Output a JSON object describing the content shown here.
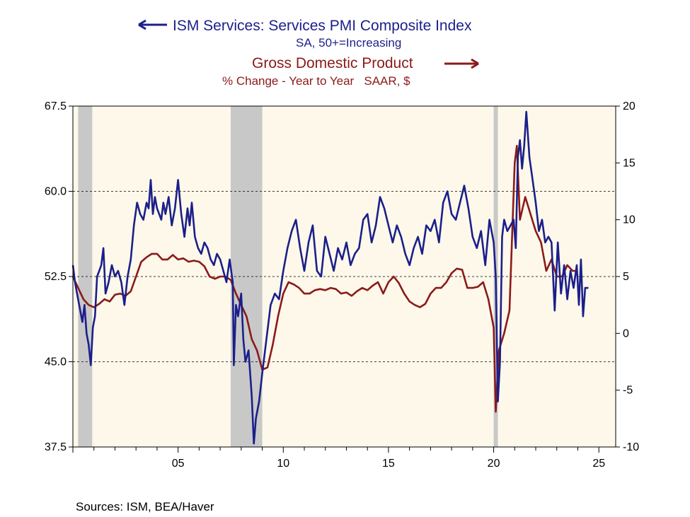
{
  "legend": {
    "ism_title": "ISM Services: Services PMI Composite Index",
    "ism_subtitle": "SA, 50+=Increasing",
    "gdp_title": "Gross Domestic Product",
    "gdp_subtitle": "% Change - Year to Year   SAAR, $"
  },
  "source": "Sources:  ISM, BEA/Haver",
  "colors": {
    "ism": "#1b1f8a",
    "gdp": "#8b1a1a",
    "plot_bg": "#fdf8ea",
    "recession": "#c8c8c8"
  },
  "chart_data": {
    "type": "line",
    "xlim": [
      2000,
      2025.8
    ],
    "x_ticks": [
      {
        "v": 2005,
        "label": "05"
      },
      {
        "v": 2010,
        "label": "10"
      },
      {
        "v": 2015,
        "label": "15"
      },
      {
        "v": 2020,
        "label": "20"
      },
      {
        "v": 2025,
        "label": "25"
      }
    ],
    "left_axis": {
      "ylim": [
        37.5,
        67.5
      ],
      "ticks": [
        "37.5",
        "45.0",
        "52.5",
        "60.0",
        "67.5"
      ]
    },
    "right_axis": {
      "ylim": [
        -10,
        20
      ],
      "ticks": [
        "-10",
        "-5",
        "0",
        "5",
        "10",
        "15",
        "20"
      ]
    },
    "gridlines_left": [
      45.0,
      52.5,
      60.0
    ],
    "recessions": [
      [
        2000.25,
        2000.92
      ],
      [
        2007.5,
        2009.0
      ],
      [
        2020.0,
        2020.2
      ]
    ],
    "series": [
      {
        "name": "ISM Services: Services PMI Composite Index",
        "axis": "left",
        "x": [
          2000.0,
          2000.1,
          2000.2,
          2000.3,
          2000.45,
          2000.55,
          2000.65,
          2000.75,
          2000.85,
          2000.95,
          2001.05,
          2001.15,
          2001.25,
          2001.35,
          2001.45,
          2001.55,
          2001.7,
          2001.85,
          2002.0,
          2002.15,
          2002.3,
          2002.45,
          2002.6,
          2002.75,
          2002.9,
          2003.05,
          2003.2,
          2003.35,
          2003.5,
          2003.6,
          2003.7,
          2003.8,
          2003.9,
          2004.0,
          2004.1,
          2004.2,
          2004.3,
          2004.4,
          2004.55,
          2004.7,
          2004.85,
          2005.0,
          2005.15,
          2005.3,
          2005.45,
          2005.55,
          2005.65,
          2005.8,
          2005.95,
          2006.1,
          2006.25,
          2006.4,
          2006.55,
          2006.7,
          2006.85,
          2007.0,
          2007.15,
          2007.3,
          2007.45,
          2007.6,
          2007.65,
          2007.75,
          2007.85,
          2008.0,
          2008.1,
          2008.2,
          2008.35,
          2008.5,
          2008.6,
          2008.7,
          2008.85,
          2009.0,
          2009.2,
          2009.4,
          2009.6,
          2009.8,
          2010.0,
          2010.2,
          2010.4,
          2010.6,
          2010.8,
          2011.0,
          2011.2,
          2011.4,
          2011.6,
          2011.8,
          2012.0,
          2012.2,
          2012.4,
          2012.6,
          2012.8,
          2013.0,
          2013.2,
          2013.4,
          2013.6,
          2013.8,
          2014.0,
          2014.2,
          2014.4,
          2014.6,
          2014.8,
          2015.0,
          2015.2,
          2015.4,
          2015.6,
          2015.8,
          2016.0,
          2016.2,
          2016.4,
          2016.6,
          2016.8,
          2017.0,
          2017.2,
          2017.4,
          2017.6,
          2017.8,
          2018.0,
          2018.2,
          2018.4,
          2018.6,
          2018.8,
          2019.0,
          2019.2,
          2019.4,
          2019.6,
          2019.8,
          2020.0,
          2020.1,
          2020.2,
          2020.3,
          2020.4,
          2020.5,
          2020.65,
          2020.8,
          2020.95,
          2021.05,
          2021.15,
          2021.25,
          2021.35,
          2021.45,
          2021.55,
          2021.7,
          2021.85,
          2022.0,
          2022.15,
          2022.3,
          2022.45,
          2022.6,
          2022.75,
          2022.9,
          2023.05,
          2023.2,
          2023.35,
          2023.5,
          2023.65,
          2023.8,
          2023.95,
          2024.05,
          2024.15,
          2024.25,
          2024.35,
          2024.5
        ],
        "values": [
          53.5,
          52.0,
          51.0,
          50.0,
          48.5,
          50.0,
          47.5,
          46.5,
          44.7,
          48.0,
          49.0,
          52.5,
          53.0,
          53.5,
          55.0,
          51.0,
          52.0,
          53.5,
          52.5,
          53.0,
          52.0,
          50.0,
          52.5,
          54.0,
          57.0,
          59.0,
          58.0,
          57.5,
          59.0,
          58.5,
          61.0,
          58.0,
          59.5,
          58.5,
          58.0,
          57.5,
          59.0,
          58.0,
          59.5,
          57.0,
          58.5,
          61.0,
          58.0,
          56.0,
          58.5,
          57.0,
          59.0,
          56.0,
          55.0,
          54.5,
          55.5,
          55.0,
          54.0,
          53.5,
          54.5,
          54.0,
          53.0,
          52.0,
          54.0,
          52.0,
          44.7,
          50.0,
          49.0,
          51.0,
          47.0,
          45.0,
          46.0,
          42.0,
          37.8,
          40.0,
          41.5,
          44.0,
          47.0,
          50.0,
          51.0,
          50.5,
          53.0,
          55.0,
          56.5,
          57.5,
          55.0,
          53.0,
          55.5,
          57.0,
          53.0,
          52.5,
          56.0,
          54.5,
          53.0,
          55.0,
          54.0,
          55.5,
          53.5,
          54.5,
          55.0,
          57.5,
          58.0,
          55.5,
          57.0,
          59.5,
          58.5,
          57.0,
          55.5,
          57.0,
          56.0,
          54.5,
          53.5,
          55.0,
          56.0,
          54.5,
          57.0,
          56.5,
          57.5,
          55.5,
          59.0,
          60.0,
          58.0,
          57.5,
          59.0,
          60.5,
          58.5,
          56.0,
          55.0,
          56.5,
          53.5,
          57.5,
          55.5,
          52.5,
          41.5,
          45.0,
          56.0,
          57.5,
          56.5,
          57.0,
          57.5,
          55.0,
          63.0,
          64.5,
          62.0,
          64.0,
          67.0,
          63.0,
          61.0,
          59.0,
          56.5,
          57.5,
          55.5,
          56.0,
          55.5,
          49.5,
          55.5,
          51.0,
          53.5,
          50.5,
          53.0,
          51.5,
          53.5,
          50.0,
          54.0,
          49.0,
          51.5,
          51.5
        ]
      },
      {
        "name": "Gross Domestic Product",
        "axis": "right",
        "x": [
          2000.0,
          2000.25,
          2000.5,
          2000.75,
          2001.0,
          2001.25,
          2001.5,
          2001.75,
          2002.0,
          2002.25,
          2002.5,
          2002.75,
          2003.0,
          2003.25,
          2003.5,
          2003.75,
          2004.0,
          2004.25,
          2004.5,
          2004.75,
          2005.0,
          2005.25,
          2005.5,
          2005.75,
          2006.0,
          2006.25,
          2006.5,
          2006.75,
          2007.0,
          2007.25,
          2007.5,
          2007.75,
          2008.0,
          2008.25,
          2008.5,
          2008.75,
          2009.0,
          2009.25,
          2009.5,
          2009.75,
          2010.0,
          2010.25,
          2010.5,
          2010.75,
          2011.0,
          2011.25,
          2011.5,
          2011.75,
          2012.0,
          2012.25,
          2012.5,
          2012.75,
          2013.0,
          2013.25,
          2013.5,
          2013.75,
          2014.0,
          2014.25,
          2014.5,
          2014.75,
          2015.0,
          2015.25,
          2015.5,
          2015.75,
          2016.0,
          2016.25,
          2016.5,
          2016.75,
          2017.0,
          2017.25,
          2017.5,
          2017.75,
          2018.0,
          2018.25,
          2018.5,
          2018.75,
          2019.0,
          2019.25,
          2019.5,
          2019.75,
          2020.0,
          2020.1,
          2020.25,
          2020.5,
          2020.75,
          2021.0,
          2021.1,
          2021.25,
          2021.5,
          2021.75,
          2022.0,
          2022.25,
          2022.5,
          2022.75,
          2023.0,
          2023.25,
          2023.5,
          2023.75,
          2024.0
        ],
        "values": [
          5.0,
          4.0,
          3.0,
          2.5,
          2.3,
          2.6,
          3.0,
          2.8,
          3.4,
          3.5,
          3.3,
          3.7,
          5.0,
          6.3,
          6.7,
          7.0,
          7.0,
          6.5,
          6.5,
          6.9,
          6.5,
          6.6,
          6.3,
          6.4,
          6.3,
          5.9,
          5.0,
          4.8,
          5.0,
          5.0,
          4.7,
          3.5,
          2.5,
          1.5,
          -0.5,
          -1.5,
          -3.2,
          -3.0,
          -1.0,
          1.5,
          3.5,
          4.5,
          4.3,
          4.0,
          3.5,
          3.5,
          3.8,
          3.9,
          3.8,
          4.0,
          3.9,
          3.5,
          3.6,
          3.3,
          3.7,
          4.0,
          3.8,
          4.2,
          4.5,
          3.5,
          4.5,
          5.0,
          4.4,
          3.5,
          2.8,
          2.5,
          2.3,
          2.6,
          3.5,
          4.0,
          4.0,
          4.5,
          5.3,
          5.7,
          5.6,
          4.0,
          4.0,
          4.1,
          4.5,
          3.0,
          0.5,
          -6.9,
          -1.5,
          0.0,
          2.0,
          15.0,
          16.5,
          10.0,
          12.0,
          10.5,
          9.0,
          8.0,
          5.5,
          6.5,
          5.0,
          5.0,
          6.0,
          5.5,
          5.5
        ]
      }
    ]
  }
}
